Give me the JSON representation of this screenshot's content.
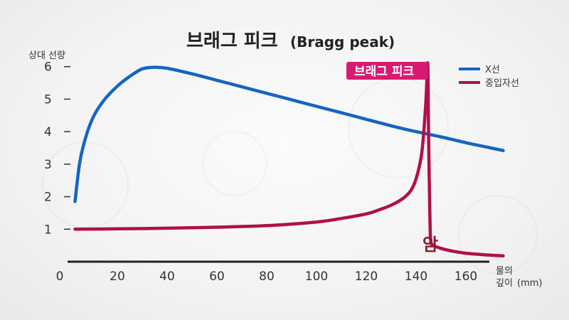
{
  "chart_data": {
    "type": "line",
    "title": "브래그 피크",
    "subtitle": "(Bragg peak)",
    "ylabel": "상대 선량",
    "xlabel": "물의",
    "xlabel_line2": "깊이",
    "xlabel_unit": "(mm)",
    "xlim": [
      0,
      170
    ],
    "ylim": [
      0,
      6.3
    ],
    "xticks": [
      "0",
      "20",
      "40",
      "60",
      "80",
      "100",
      "120",
      "140",
      "160"
    ],
    "xtick_values": [
      0,
      20,
      40,
      60,
      80,
      100,
      120,
      140,
      160
    ],
    "yticks": [
      "1",
      "2",
      "3",
      "4",
      "5",
      "6"
    ],
    "ytick_values": [
      1,
      2,
      3,
      4,
      5,
      6
    ],
    "legend_position": "top-right",
    "callout": "브래그 피크",
    "annotation": "암",
    "series": [
      {
        "name": "X선",
        "color": "#1565c0",
        "x": [
          3,
          5,
          8,
          11,
          15,
          20,
          25,
          30,
          35,
          40,
          50,
          60,
          70,
          80,
          90,
          100,
          110,
          120,
          130,
          140,
          150,
          160,
          170,
          175
        ],
        "y": [
          1.85,
          3.1,
          4.0,
          4.55,
          5.0,
          5.4,
          5.7,
          5.93,
          5.98,
          5.95,
          5.78,
          5.58,
          5.38,
          5.18,
          4.98,
          4.78,
          4.58,
          4.38,
          4.18,
          4.0,
          3.84,
          3.66,
          3.5,
          3.42
        ]
      },
      {
        "name": "중입자선",
        "color": "#b0104a",
        "x": [
          3,
          20,
          40,
          60,
          80,
          100,
          110,
          120,
          125,
          130,
          135,
          138,
          140,
          142,
          143,
          144,
          144.7,
          145,
          145.6,
          146,
          147,
          150,
          155,
          160,
          170,
          175
        ],
        "y": [
          1.0,
          1.01,
          1.03,
          1.06,
          1.11,
          1.22,
          1.33,
          1.47,
          1.59,
          1.74,
          1.96,
          2.2,
          2.55,
          3.2,
          3.9,
          5.0,
          6.1,
          4.0,
          1.2,
          0.6,
          0.5,
          0.41,
          0.32,
          0.26,
          0.2,
          0.18
        ]
      }
    ]
  }
}
